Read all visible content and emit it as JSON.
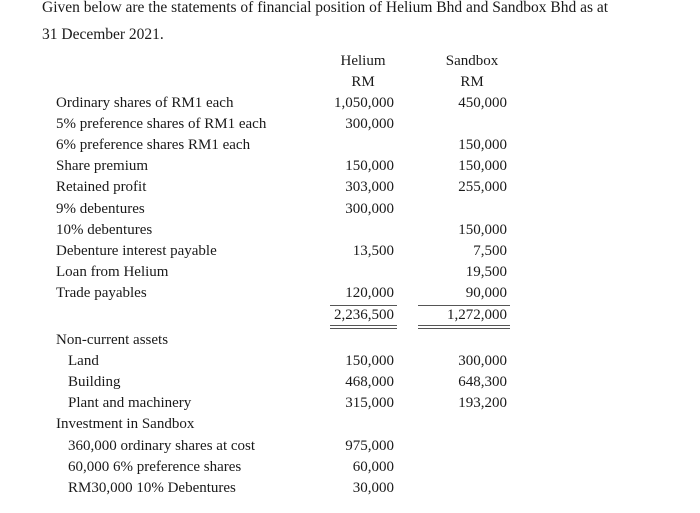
{
  "title": {
    "line1": "Given below are the statements of financial position of Helium Bhd and Sandbox Bhd as at",
    "line2": "31 December 2021."
  },
  "columns": {
    "helium": {
      "name": "Helium",
      "unit": "RM"
    },
    "sandbox": {
      "name": "Sandbox",
      "unit": "RM"
    }
  },
  "equity_liabilities": [
    {
      "label": "Ordinary shares of RM1 each",
      "helium": "1,050,000",
      "sandbox": "450,000"
    },
    {
      "label": "5% preference shares of RM1 each",
      "helium": "300,000",
      "sandbox": ""
    },
    {
      "label": "6% preference shares RM1 each",
      "helium": "",
      "sandbox": "150,000"
    },
    {
      "label": "Share premium",
      "helium": "150,000",
      "sandbox": "150,000"
    },
    {
      "label": "Retained profit",
      "helium": "303,000",
      "sandbox": "255,000"
    },
    {
      "label": "9% debentures",
      "helium": "300,000",
      "sandbox": ""
    },
    {
      "label": "10% debentures",
      "helium": "",
      "sandbox": "150,000"
    },
    {
      "label": "Debenture interest payable",
      "helium": "13,500",
      "sandbox": "7,500"
    },
    {
      "label": "Loan from Helium",
      "helium": "",
      "sandbox": "19,500"
    },
    {
      "label": "Trade payables",
      "helium": "120,000",
      "sandbox": "90,000"
    }
  ],
  "totals": {
    "helium": "2,236,500",
    "sandbox": "1,272,000"
  },
  "assets": [
    {
      "label": "Non-current assets",
      "indent": false,
      "helium": "",
      "sandbox": ""
    },
    {
      "label": "Land",
      "indent": true,
      "helium": "150,000",
      "sandbox": "300,000"
    },
    {
      "label": "Building",
      "indent": true,
      "helium": "468,000",
      "sandbox": "648,300"
    },
    {
      "label": "Plant and machinery",
      "indent": true,
      "helium": "315,000",
      "sandbox": "193,200"
    },
    {
      "label": "Investment in Sandbox",
      "indent": false,
      "helium": "",
      "sandbox": ""
    },
    {
      "label": "360,000 ordinary shares at cost",
      "indent": true,
      "helium": "975,000",
      "sandbox": ""
    },
    {
      "label": "60,000 6% preference shares",
      "indent": true,
      "helium": "60,000",
      "sandbox": ""
    },
    {
      "label": "RM30,000 10% Debentures",
      "indent": true,
      "helium": "30,000",
      "sandbox": ""
    }
  ]
}
